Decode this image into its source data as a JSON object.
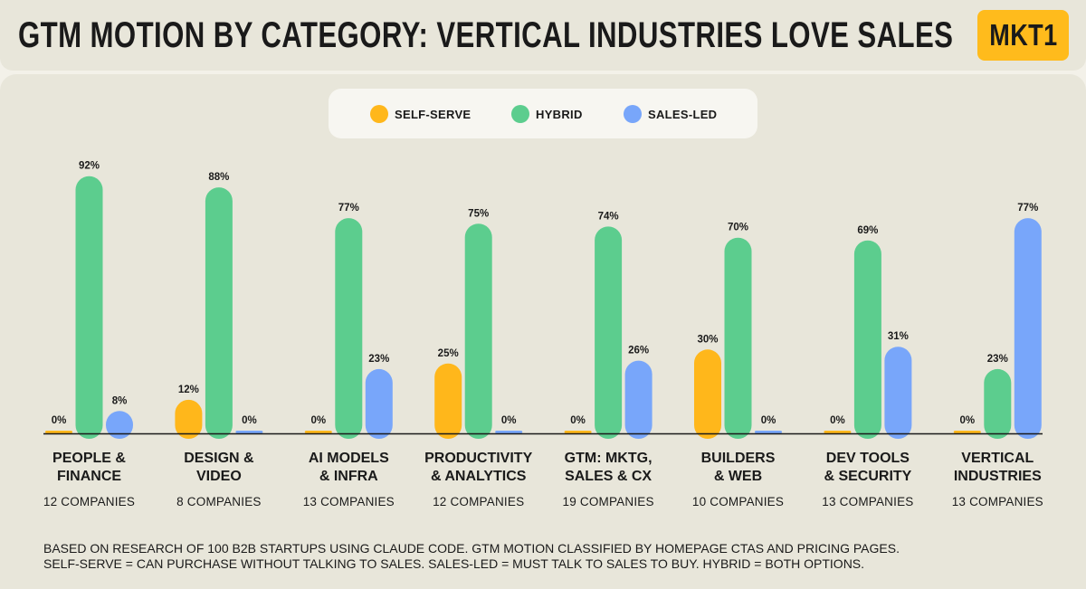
{
  "header": {
    "title": "GTM MOTION BY CATEGORY: VERTICAL INDUSTRIES LOVE SALES",
    "logo": "MKT1"
  },
  "colors": {
    "self_serve": "#ffb71b",
    "hybrid": "#5ccd8e",
    "sales_led": "#78a6fa",
    "axis": "#1a1a1a"
  },
  "chart_data": {
    "type": "bar",
    "title": "GTM MOTION BY CATEGORY: VERTICAL INDUSTRIES LOVE SALES",
    "ylim": [
      0,
      100
    ],
    "legend": [
      "SELF-SERVE",
      "HYBRID",
      "SALES-LED"
    ],
    "legend_position": "top-center",
    "categories": [
      {
        "line1": "PEOPLE &",
        "line2": "FINANCE",
        "companies": "12 COMPANIES"
      },
      {
        "line1": "DESIGN &",
        "line2": "VIDEO",
        "companies": "8 COMPANIES"
      },
      {
        "line1": "AI MODELS",
        "line2": "& INFRA",
        "companies": "13 COMPANIES"
      },
      {
        "line1": "PRODUCTIVITY",
        "line2": "& ANALYTICS",
        "companies": "12 COMPANIES"
      },
      {
        "line1": "GTM: MKTG,",
        "line2": "SALES & CX",
        "companies": "19 COMPANIES"
      },
      {
        "line1": "BUILDERS",
        "line2": "& WEB",
        "companies": "10 COMPANIES"
      },
      {
        "line1": "DEV TOOLS",
        "line2": "& SECURITY",
        "companies": "13 COMPANIES"
      },
      {
        "line1": "VERTICAL",
        "line2": "INDUSTRIES",
        "companies": "13 COMPANIES"
      }
    ],
    "series": [
      {
        "name": "SELF-SERVE",
        "key": "self_serve",
        "values": [
          0,
          12,
          0,
          25,
          0,
          30,
          0,
          0
        ]
      },
      {
        "name": "HYBRID",
        "key": "hybrid",
        "values": [
          92,
          88,
          77,
          75,
          74,
          70,
          69,
          23
        ]
      },
      {
        "name": "SALES-LED",
        "key": "sales_led",
        "values": [
          8,
          0,
          23,
          0,
          26,
          0,
          31,
          77
        ]
      }
    ],
    "value_suffix": "%"
  },
  "footnote": {
    "line1": "BASED ON RESEARCH OF 100 B2B STARTUPS USING CLAUDE CODE.  GTM MOTION CLASSIFIED BY HOMEPAGE CTAS AND PRICING PAGES.",
    "line2": "SELF-SERVE = CAN PURCHASE WITHOUT TALKING TO SALES. SALES-LED = MUST TALK TO SALES TO BUY. HYBRID = BOTH OPTIONS."
  }
}
